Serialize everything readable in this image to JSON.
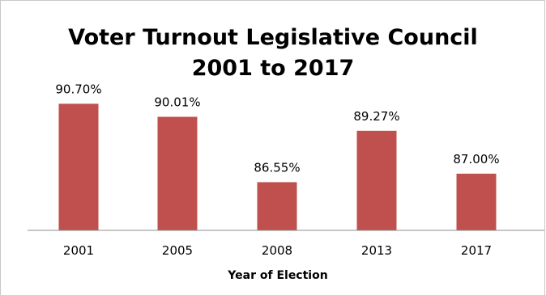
{
  "chart_data": {
    "type": "bar",
    "title_line1": "Voter Turnout Legislative Council",
    "title_line2": "2001 to 2017",
    "xlabel": "Year of Election",
    "ylabel": "",
    "categories": [
      "2001",
      "2005",
      "2008",
      "2013",
      "2017"
    ],
    "values": [
      90.7,
      90.01,
      86.55,
      89.27,
      87.0
    ],
    "data_labels": [
      "90.70%",
      "90.01%",
      "86.55%",
      "89.27%",
      "87.00%"
    ],
    "ylim": [
      84,
      92
    ],
    "grid": false,
    "legend": "none",
    "bar_color": "#c0504d"
  }
}
